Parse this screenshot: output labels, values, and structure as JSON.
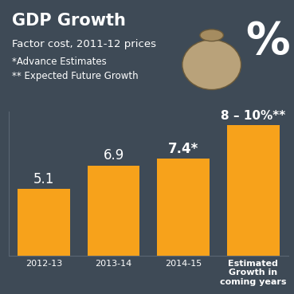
{
  "chart_data": {
    "type": "bar",
    "title": "GDP Growth",
    "subtitle": "Factor cost, 2011-12 prices",
    "annotations": [
      "*Advance Estimates",
      "** Expected Future Growth",
      "%"
    ],
    "categories": [
      "2012-13",
      "2013-14",
      "2014-15",
      "Estimated Growth in coming years"
    ],
    "values": [
      5.1,
      6.9,
      7.4,
      10
    ],
    "value_labels": [
      "5.1",
      "6.9",
      "7.4*",
      "8 – 10%**"
    ],
    "color": "#f7a21b",
    "ylim": [
      0,
      11
    ],
    "yticks": [],
    "data_labels": true,
    "tick_labels": "x",
    "grid": false
  }
}
